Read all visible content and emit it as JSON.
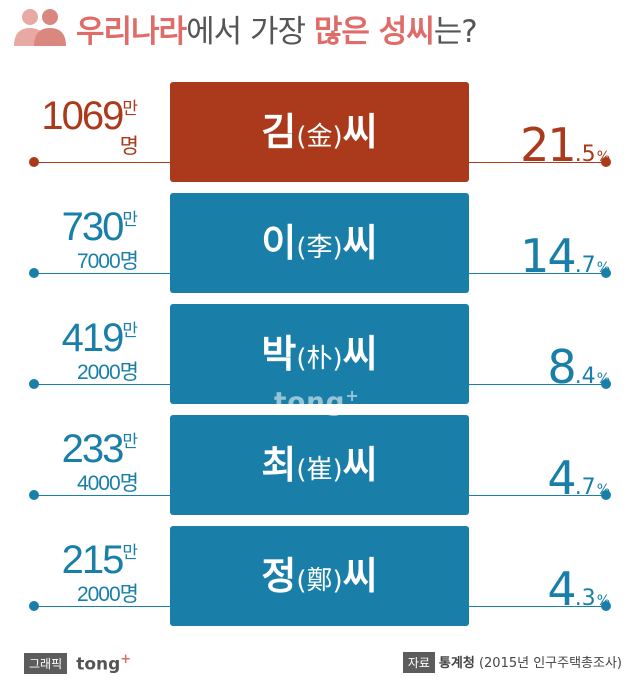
{
  "title": {
    "part1": "우리나라",
    "part2": "에서 가장 ",
    "part3": "많은 성씨",
    "part4": "는?"
  },
  "colors": {
    "highlight": "#aa3a1b",
    "normal": "#197fa8",
    "title_accent": "#e06c6a"
  },
  "watermark": {
    "text": "tong",
    "sup": "+"
  },
  "chart_data": {
    "type": "table",
    "rows": [
      {
        "surname": "김",
        "hanja": "(金)",
        "suffix": "씨",
        "count_main": "1069",
        "count_unit": "만",
        "count_rest": "명",
        "pct_int": "21",
        "pct_dec": ".5",
        "pct_sign": "%",
        "highlight": true
      },
      {
        "surname": "이",
        "hanja": "(李)",
        "suffix": "씨",
        "count_main": "730",
        "count_unit": "만",
        "count_rest": "7000명",
        "pct_int": "14",
        "pct_dec": ".7",
        "pct_sign": "%",
        "highlight": false
      },
      {
        "surname": "박",
        "hanja": "(朴)",
        "suffix": "씨",
        "count_main": "419",
        "count_unit": "만",
        "count_rest": "2000명",
        "pct_int": "8",
        "pct_dec": ".4",
        "pct_sign": "%",
        "highlight": false
      },
      {
        "surname": "최",
        "hanja": "(崔)",
        "suffix": "씨",
        "count_main": "233",
        "count_unit": "만",
        "count_rest": "4000명",
        "pct_int": "4",
        "pct_dec": ".7",
        "pct_sign": "%",
        "highlight": false
      },
      {
        "surname": "정",
        "hanja": "(鄭)",
        "suffix": "씨",
        "count_main": "215",
        "count_unit": "만",
        "count_rest": "2000명",
        "pct_int": "4",
        "pct_dec": ".3",
        "pct_sign": "%",
        "highlight": false
      }
    ]
  },
  "footer": {
    "left_badge": "그래픽",
    "brand": "tong",
    "brand_sup": "+",
    "source_badge": "자료",
    "source": "통계청",
    "source_note": "(2015년 인구주택총조사)"
  }
}
